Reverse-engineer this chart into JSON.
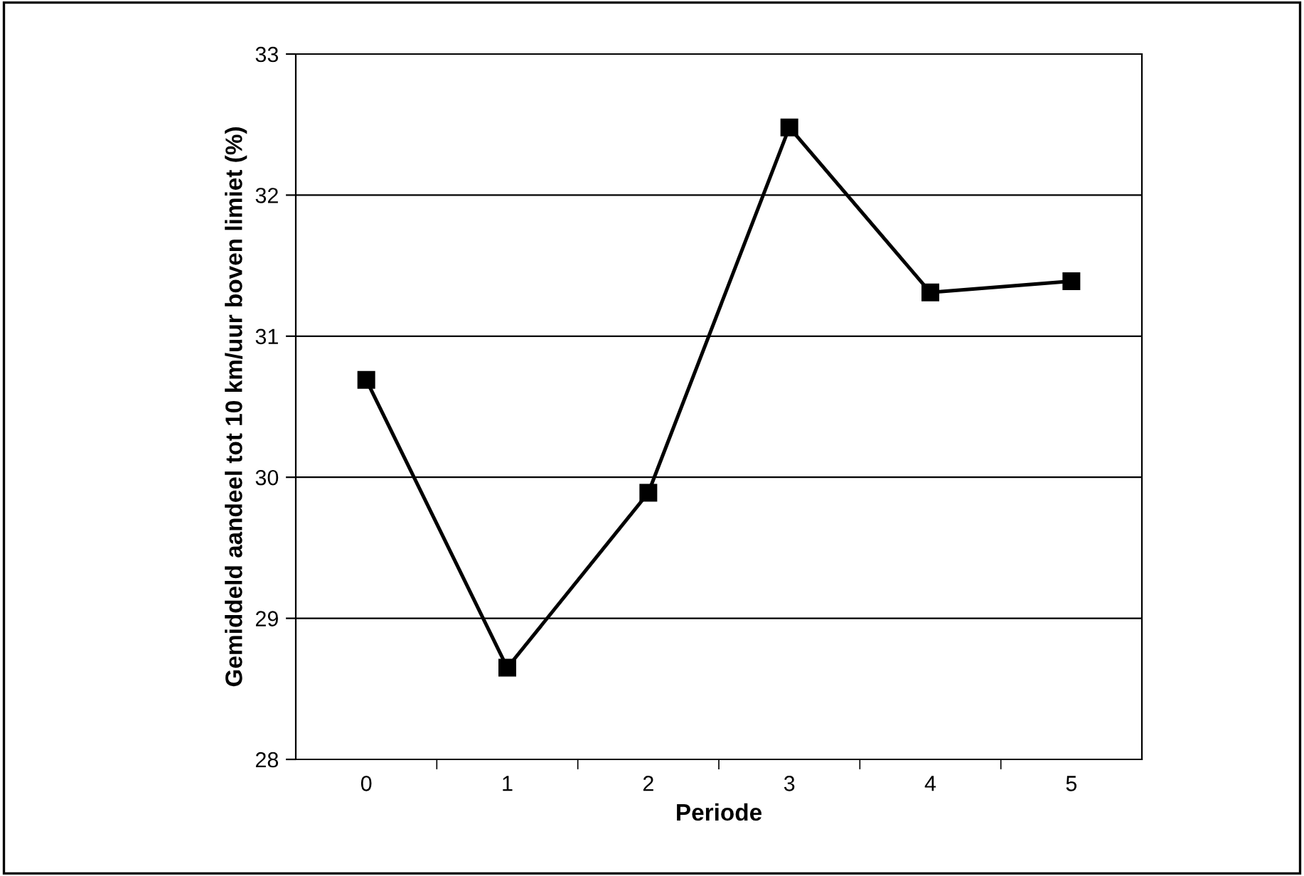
{
  "chart_data": {
    "type": "line",
    "xlabel": "Periode",
    "ylabel": "Gemiddeld aandeel tot 10 km/uur boven limiet (%)",
    "categories": [
      "0",
      "1",
      "2",
      "3",
      "4",
      "5"
    ],
    "series": [
      {
        "color": "#000000",
        "values": [
          30.69,
          28.65,
          29.89,
          32.48,
          31.31,
          31.39
        ]
      }
    ],
    "ylim": [
      28,
      33
    ],
    "yticks": [
      28,
      29,
      30,
      31,
      32,
      33
    ],
    "grid": "y",
    "marker": "square",
    "line_style": "solid",
    "legend": false
  }
}
